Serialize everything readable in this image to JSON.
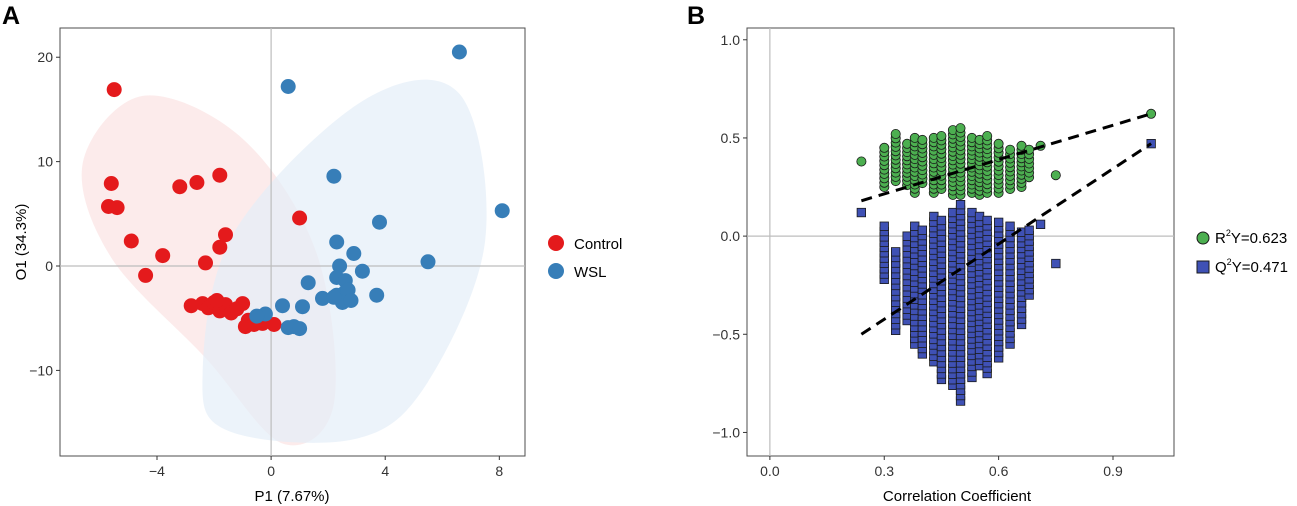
{
  "chart_data": [
    {
      "panel": "A",
      "type": "scatter",
      "xlabel": "P1 (7.67%)",
      "ylabel": "O1 (34.3%)",
      "xlim": [
        -7.4,
        8.9
      ],
      "ylim": [
        -18.2,
        22.8
      ],
      "xticks": [
        -4,
        0,
        4,
        8
      ],
      "xtick_labels": [
        "−4",
        "0",
        "4",
        "8"
      ],
      "yticks": [
        -10,
        0,
        10,
        20
      ],
      "ytick_labels": [
        "−10",
        "0",
        "10",
        "20"
      ],
      "reference_lines": {
        "x": 0,
        "y": 0
      },
      "legend": {
        "position": "right",
        "entries": [
          "Control",
          "WSL"
        ]
      },
      "colors": {
        "Control": "#e41a1c",
        "WSL": "#377eb8",
        "ControlEllipse": "#fbe3e2",
        "WSLEllipse": "#e4eef8"
      },
      "ellipses": [
        {
          "name": "Control",
          "points": [
            [
              -6.6,
              9.9
            ],
            [
              -4.5,
              16.3
            ],
            [
              -1.0,
              12.2
            ],
            [
              1.6,
              1.2
            ],
            [
              2.2,
              -13.2
            ],
            [
              0.4,
              -17.0
            ],
            [
              -2.3,
              -8.8
            ],
            [
              -5.6,
              0.8
            ]
          ]
        },
        {
          "name": "WSL",
          "points": [
            [
              -2.4,
              -10.4
            ],
            [
              -1.3,
              3.2
            ],
            [
              3.2,
              15.8
            ],
            [
              6.6,
              16.5
            ],
            [
              7.5,
              2.4
            ],
            [
              5.4,
              -11.5
            ],
            [
              2.9,
              -16.6
            ],
            [
              -1.5,
              -15.8
            ]
          ]
        }
      ],
      "series": [
        {
          "name": "Control",
          "x": [
            -5.5,
            -5.6,
            -5.4,
            -5.7,
            -4.9,
            -4.4,
            -3.8,
            -3.2,
            -2.6,
            -1.8,
            -1.8,
            -1.6,
            -2.3,
            1.0,
            -2.8,
            -2.4,
            -2.2,
            -2.0,
            -1.8,
            -1.6,
            -1.4,
            -1.2,
            -1.0,
            -0.8,
            -1.9,
            -0.9,
            -0.6,
            -0.3,
            0.1
          ],
          "y": [
            16.9,
            7.9,
            5.6,
            5.7,
            2.4,
            -0.9,
            1.0,
            7.6,
            8.0,
            8.7,
            1.8,
            3.0,
            0.3,
            4.6,
            -3.8,
            -3.6,
            -4.0,
            -3.5,
            -4.3,
            -3.7,
            -4.5,
            -4.1,
            -3.6,
            -5.2,
            -3.3,
            -5.8,
            -5.6,
            -5.5,
            -5.6
          ]
        },
        {
          "name": "WSL",
          "x": [
            6.6,
            0.6,
            8.1,
            2.2,
            3.8,
            5.5,
            2.3,
            2.9,
            3.2,
            2.4,
            2.3,
            2.6,
            2.6,
            1.3,
            1.8,
            1.1,
            0.4,
            0.8,
            0.6,
            1.0,
            2.3,
            2.6,
            2.7,
            3.7,
            2.5,
            2.8,
            2.2,
            -0.2,
            -0.5
          ],
          "y": [
            20.5,
            17.2,
            5.3,
            8.6,
            4.2,
            0.4,
            2.3,
            1.2,
            -0.5,
            0.0,
            -1.1,
            -1.4,
            -2.6,
            -1.6,
            -3.1,
            -3.9,
            -3.8,
            -5.8,
            -5.9,
            -6.0,
            -2.8,
            -2.5,
            -2.3,
            -2.8,
            -3.5,
            -3.3,
            -3.0,
            -4.6,
            -4.8
          ]
        }
      ]
    },
    {
      "panel": "B",
      "type": "scatter",
      "xlabel": "Correlation Coefficient",
      "ylabel": "",
      "xlim": [
        -0.06,
        1.06
      ],
      "ylim": [
        -1.12,
        1.06
      ],
      "xticks": [
        0.0,
        0.3,
        0.6,
        0.9
      ],
      "xtick_labels": [
        "0.0",
        "0.3",
        "0.6",
        "0.9"
      ],
      "yticks": [
        -1.0,
        -0.5,
        0.0,
        0.5,
        1.0
      ],
      "ytick_labels": [
        "−1.0",
        "−0.5",
        "0.0",
        "0.5",
        "1.0"
      ],
      "reference_lines": {
        "x": 0.0,
        "y": 0.0
      },
      "legend": {
        "position": "right",
        "entries": [
          "R2Y=0.623",
          "Q2Y=0.471"
        ]
      },
      "colors": {
        "R2Y": "#4caf50",
        "Q2Y": "#3f51b5",
        "outline": "#1a1a1a"
      },
      "regression_lines": [
        {
          "name": "R2Y",
          "from": [
            0.24,
            0.18
          ],
          "to": [
            1.0,
            0.623
          ]
        },
        {
          "name": "Q2Y",
          "from": [
            0.24,
            -0.5
          ],
          "to": [
            1.0,
            0.471
          ]
        }
      ],
      "series": [
        {
          "name": "R2Y",
          "label": "R2Y=0.623",
          "marker": "circle",
          "distribution": {
            "columns": [
              [
                0.24,
                0.38,
                0.38
              ],
              [
                0.3,
                0.25,
                0.45
              ],
              [
                0.33,
                0.28,
                0.52
              ],
              [
                0.36,
                0.26,
                0.47
              ],
              [
                0.38,
                0.22,
                0.5
              ],
              [
                0.4,
                0.27,
                0.49
              ],
              [
                0.43,
                0.22,
                0.5
              ],
              [
                0.45,
                0.24,
                0.51
              ],
              [
                0.48,
                0.21,
                0.54
              ],
              [
                0.5,
                0.21,
                0.55
              ],
              [
                0.53,
                0.22,
                0.5
              ],
              [
                0.55,
                0.21,
                0.49
              ],
              [
                0.57,
                0.22,
                0.51
              ],
              [
                0.6,
                0.22,
                0.47
              ],
              [
                0.63,
                0.24,
                0.44
              ],
              [
                0.66,
                0.25,
                0.46
              ],
              [
                0.68,
                0.3,
                0.44
              ],
              [
                0.71,
                0.46,
                0.46
              ],
              [
                0.75,
                0.31,
                0.31
              ]
            ]
          },
          "highlight": [
            1.0,
            0.623
          ]
        },
        {
          "name": "Q2Y",
          "label": "Q2Y=0.471",
          "marker": "square",
          "distribution": {
            "columns": [
              [
                0.24,
                0.12,
                0.12
              ],
              [
                0.3,
                -0.22,
                0.05
              ],
              [
                0.33,
                -0.48,
                -0.08
              ],
              [
                0.36,
                -0.43,
                0.0
              ],
              [
                0.38,
                -0.55,
                0.05
              ],
              [
                0.4,
                -0.6,
                0.03
              ],
              [
                0.43,
                -0.64,
                0.1
              ],
              [
                0.45,
                -0.73,
                0.08
              ],
              [
                0.48,
                -0.76,
                0.12
              ],
              [
                0.5,
                -0.84,
                0.16
              ],
              [
                0.53,
                -0.72,
                0.12
              ],
              [
                0.55,
                -0.66,
                0.1
              ],
              [
                0.57,
                -0.7,
                0.08
              ],
              [
                0.6,
                -0.62,
                0.07
              ],
              [
                0.63,
                -0.55,
                0.05
              ],
              [
                0.66,
                -0.45,
                0.02
              ],
              [
                0.68,
                -0.3,
                0.03
              ],
              [
                0.71,
                0.06,
                0.06
              ],
              [
                0.75,
                -0.14,
                -0.14
              ]
            ]
          },
          "highlight": [
            1.0,
            0.471
          ]
        }
      ]
    }
  ],
  "legend_a": {
    "control": "Control",
    "wsl": "WSL"
  },
  "legend_b": {
    "r2_prefix": "R",
    "r2_sup": "2",
    "r2_suffix": "Y=0.623",
    "q2_prefix": "Q",
    "q2_sup": "2",
    "q2_suffix": "Y=0.471"
  },
  "panel_labels": {
    "a": "A",
    "b": "B"
  }
}
